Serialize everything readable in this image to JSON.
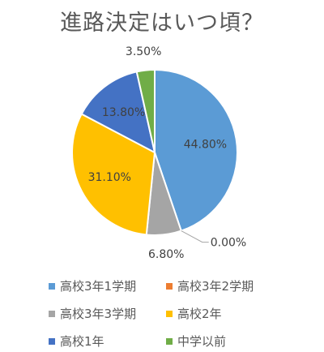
{
  "chart_data": {
    "type": "pie",
    "title": "進路決定はいつ頃？",
    "slices": [
      {
        "name": "高校3年1学期",
        "value": 44.8,
        "label": "44.80%",
        "color": "#5b9bd5"
      },
      {
        "name": "高校3年2学期",
        "value": 0.0,
        "label": "0.00%",
        "color": "#ed7d31"
      },
      {
        "name": "高校3年3学期",
        "value": 6.8,
        "label": "6.80%",
        "color": "#a5a5a5"
      },
      {
        "name": "高校2年",
        "value": 31.1,
        "label": "31.10%",
        "color": "#ffc000"
      },
      {
        "name": "高校1年",
        "value": 13.8,
        "label": "13.80%",
        "color": "#4472c4"
      },
      {
        "name": "中学以前",
        "value": 3.5,
        "label": "3.50%",
        "color": "#70ad47"
      }
    ],
    "legend_position": "bottom"
  }
}
